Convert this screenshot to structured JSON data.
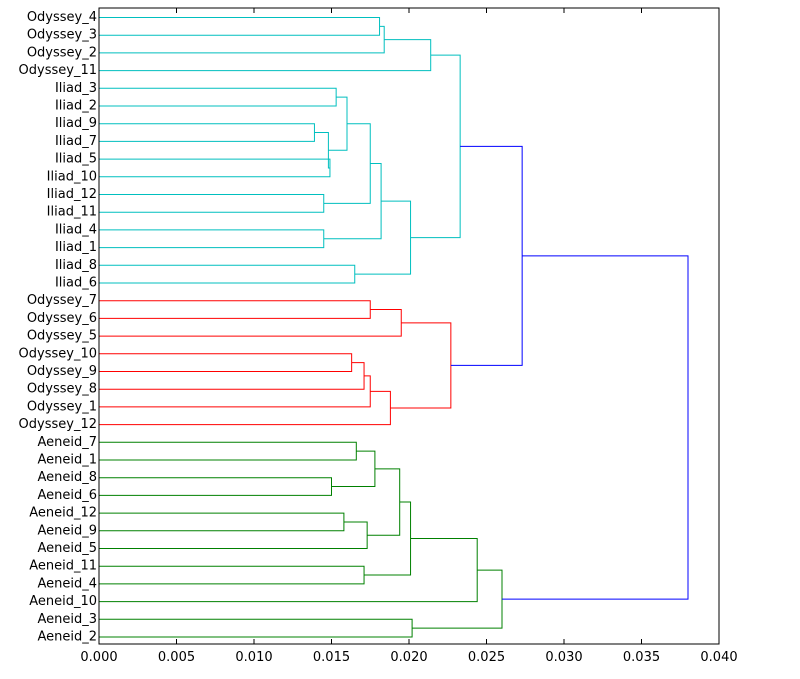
{
  "chart_data": {
    "type": "dendrogram",
    "orientation": "left",
    "xlim": [
      0.0,
      0.04
    ],
    "xticks": [
      "0.000",
      "0.005",
      "0.010",
      "0.015",
      "0.020",
      "0.025",
      "0.030",
      "0.035",
      "0.040"
    ],
    "grid": false,
    "colors": {
      "cyan": "#00bfbf",
      "red": "#ff0000",
      "green": "#008000",
      "blue": "#0000ff"
    },
    "leaves": [
      "Odyssey_4",
      "Odyssey_3",
      "Odyssey_2",
      "Odyssey_11",
      "Iliad_3",
      "Iliad_2",
      "Iliad_9",
      "Iliad_7",
      "Iliad_5",
      "Iliad_10",
      "Iliad_12",
      "Iliad_11",
      "Iliad_4",
      "Iliad_1",
      "Iliad_8",
      "Iliad_6",
      "Odyssey_7",
      "Odyssey_6",
      "Odyssey_5",
      "Odyssey_10",
      "Odyssey_9",
      "Odyssey_8",
      "Odyssey_1",
      "Odyssey_12",
      "Aeneid_7",
      "Aeneid_1",
      "Aeneid_8",
      "Aeneid_6",
      "Aeneid_12",
      "Aeneid_9",
      "Aeneid_5",
      "Aeneid_11",
      "Aeneid_4",
      "Aeneid_10",
      "Aeneid_3",
      "Aeneid_2"
    ],
    "merges": [
      {
        "left": "Odyssey_4",
        "right": "Odyssey_3",
        "height": 0.0181,
        "color": "cyan"
      },
      {
        "left": "c0",
        "right": "Odyssey_2",
        "height": 0.0184,
        "color": "cyan"
      },
      {
        "left": "c1",
        "right": "Odyssey_11",
        "height": 0.0214,
        "color": "cyan"
      },
      {
        "left": "Iliad_3",
        "right": "Iliad_2",
        "height": 0.0153,
        "color": "cyan"
      },
      {
        "left": "Iliad_9",
        "right": "Iliad_7",
        "height": 0.0139,
        "color": "cyan"
      },
      {
        "left": "Iliad_5",
        "right": "Iliad_10",
        "height": 0.0149,
        "color": "cyan"
      },
      {
        "left": "c4",
        "right": "c5",
        "height": 0.0148,
        "color": "cyan"
      },
      {
        "left": "c3",
        "right": "c6",
        "height": 0.016,
        "color": "cyan"
      },
      {
        "left": "Iliad_12",
        "right": "Iliad_11",
        "height": 0.0145,
        "color": "cyan"
      },
      {
        "left": "c7",
        "right": "c8",
        "height": 0.0175,
        "color": "cyan"
      },
      {
        "left": "Iliad_4",
        "right": "Iliad_1",
        "height": 0.0145,
        "color": "cyan"
      },
      {
        "left": "c9",
        "right": "c10",
        "height": 0.0182,
        "color": "cyan"
      },
      {
        "left": "Iliad_8",
        "right": "Iliad_6",
        "height": 0.0165,
        "color": "cyan"
      },
      {
        "left": "c11",
        "right": "c12",
        "height": 0.0201,
        "color": "cyan"
      },
      {
        "left": "c2",
        "right": "c13",
        "height": 0.0233,
        "color": "cyan"
      },
      {
        "left": "Odyssey_7",
        "right": "Odyssey_6",
        "height": 0.0175,
        "color": "red"
      },
      {
        "left": "c15",
        "right": "Odyssey_5",
        "height": 0.0195,
        "color": "red"
      },
      {
        "left": "Odyssey_10",
        "right": "Odyssey_9",
        "height": 0.0163,
        "color": "red"
      },
      {
        "left": "c17",
        "right": "Odyssey_8",
        "height": 0.0171,
        "color": "red"
      },
      {
        "left": "c18",
        "right": "Odyssey_1",
        "height": 0.0175,
        "color": "red"
      },
      {
        "left": "c19",
        "right": "Odyssey_12",
        "height": 0.0188,
        "color": "red"
      },
      {
        "left": "c16",
        "right": "c20",
        "height": 0.0227,
        "color": "red"
      },
      {
        "left": "c14",
        "right": "c21",
        "height": 0.0273,
        "color": "blue"
      },
      {
        "left": "Aeneid_7",
        "right": "Aeneid_1",
        "height": 0.0166,
        "color": "green"
      },
      {
        "left": "Aeneid_8",
        "right": "Aeneid_6",
        "height": 0.015,
        "color": "green"
      },
      {
        "left": "c23",
        "right": "c24",
        "height": 0.0178,
        "color": "green"
      },
      {
        "left": "Aeneid_12",
        "right": "Aeneid_9",
        "height": 0.0158,
        "color": "green"
      },
      {
        "left": "c26",
        "right": "Aeneid_5",
        "height": 0.0173,
        "color": "green"
      },
      {
        "left": "c25",
        "right": "c27",
        "height": 0.0194,
        "color": "green"
      },
      {
        "left": "Aeneid_11",
        "right": "Aeneid_4",
        "height": 0.0171,
        "color": "green"
      },
      {
        "left": "c28",
        "right": "c29",
        "height": 0.0201,
        "color": "green"
      },
      {
        "left": "c30",
        "right": "Aeneid_10",
        "height": 0.0244,
        "color": "green"
      },
      {
        "left": "Aeneid_3",
        "right": "Aeneid_2",
        "height": 0.0202,
        "color": "green"
      },
      {
        "left": "c31",
        "right": "c32",
        "height": 0.026,
        "color": "green"
      },
      {
        "left": "c22",
        "right": "c33",
        "height": 0.038,
        "color": "blue"
      }
    ]
  }
}
